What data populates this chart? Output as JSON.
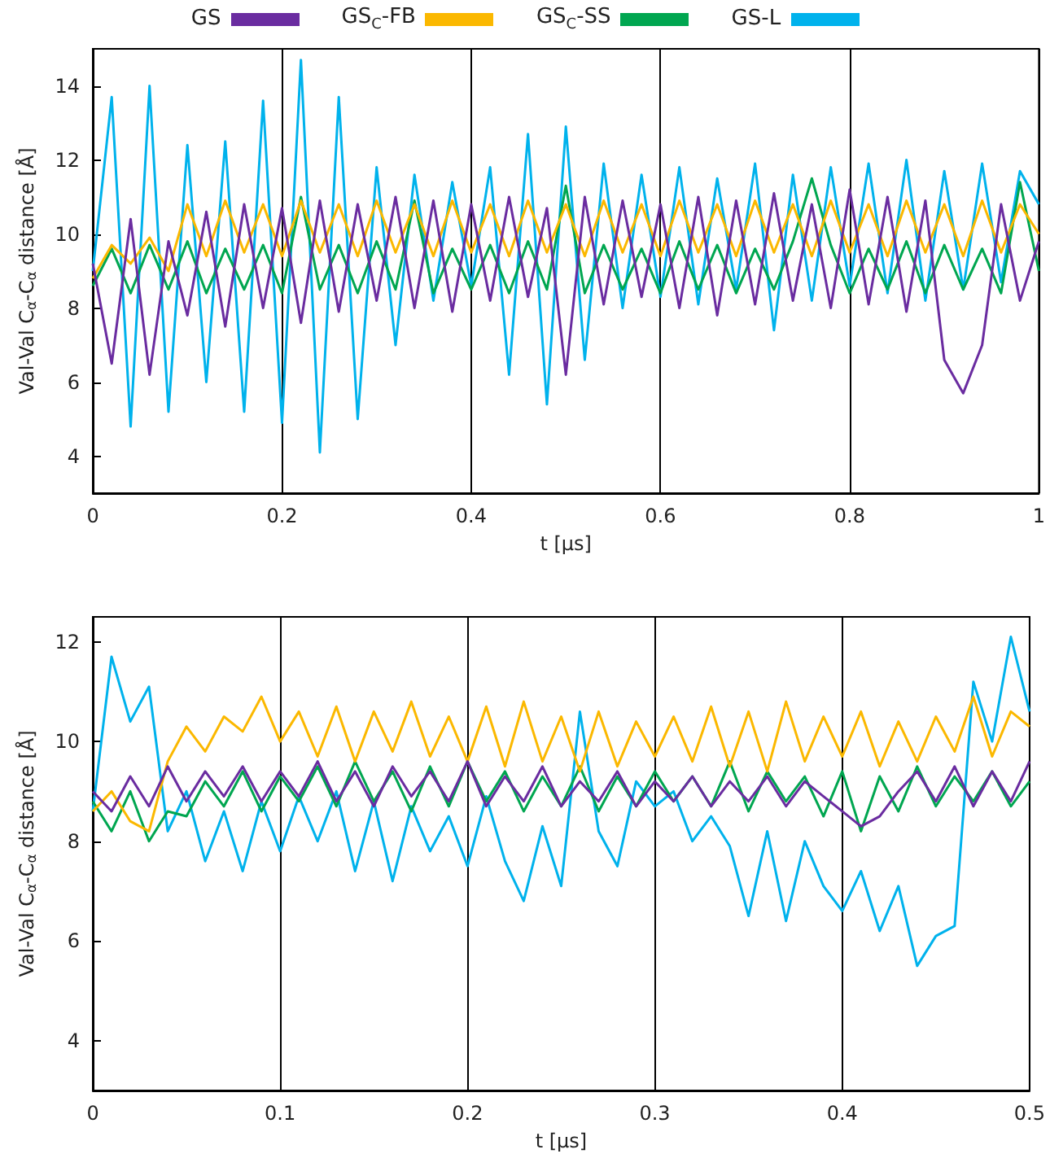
{
  "chart_data": [
    {
      "type": "line",
      "xlabel": "t [μs]",
      "ylabel": "Val-Val C$_{α}$-C$_{α}$ distance [Å]",
      "legend": "top",
      "grid": "x",
      "marker": "none",
      "line_style": "solid",
      "xlim": [
        0,
        1
      ],
      "xticks": [
        0,
        0.2,
        0.4,
        0.6,
        0.8,
        1
      ],
      "ylim": [
        3,
        15
      ],
      "yticks": [
        4,
        6,
        8,
        10,
        12,
        14
      ],
      "x": [
        0,
        0.02,
        0.04,
        0.06,
        0.08,
        0.1,
        0.12,
        0.14,
        0.16,
        0.18,
        0.2,
        0.22,
        0.24,
        0.26,
        0.28,
        0.3,
        0.32,
        0.34,
        0.36,
        0.38,
        0.4,
        0.42,
        0.44,
        0.46,
        0.48,
        0.5,
        0.52,
        0.54,
        0.56,
        0.58,
        0.6,
        0.62,
        0.64,
        0.66,
        0.68,
        0.7,
        0.72,
        0.74,
        0.76,
        0.78,
        0.8,
        0.82,
        0.84,
        0.86,
        0.88,
        0.9,
        0.92,
        0.94,
        0.96,
        0.98,
        1
      ],
      "series": [
        {
          "name": "GS",
          "color": "#6a2ca0",
          "values": [
            9.2,
            6.5,
            10.4,
            6.2,
            9.8,
            7.8,
            10.6,
            7.5,
            10.8,
            8.0,
            10.7,
            7.6,
            10.9,
            7.9,
            10.8,
            8.2,
            11.0,
            8.0,
            10.9,
            7.9,
            10.8,
            8.2,
            11.0,
            8.3,
            10.7,
            6.2,
            11.0,
            8.1,
            10.9,
            8.3,
            10.8,
            8.0,
            11.0,
            7.8,
            10.9,
            8.1,
            11.1,
            8.2,
            10.8,
            8.0,
            11.2,
            8.1,
            11.0,
            7.9,
            10.9,
            6.6,
            5.7,
            7.0,
            10.8,
            8.2,
            9.8
          ]
        },
        {
          "name": "GS$_{C}$-FB",
          "color": "#fbb800",
          "values": [
            8.8,
            9.7,
            9.2,
            9.9,
            9.0,
            10.8,
            9.4,
            10.9,
            9.5,
            10.8,
            9.4,
            10.9,
            9.5,
            10.8,
            9.4,
            10.9,
            9.5,
            10.8,
            9.4,
            10.9,
            9.5,
            10.8,
            9.4,
            10.9,
            9.5,
            10.8,
            9.4,
            10.9,
            9.5,
            10.8,
            9.4,
            10.9,
            9.5,
            10.8,
            9.4,
            10.9,
            9.5,
            10.8,
            9.4,
            10.9,
            9.5,
            10.8,
            9.4,
            10.9,
            9.5,
            10.8,
            9.4,
            10.9,
            9.5,
            10.8,
            10.0
          ]
        },
        {
          "name": "GS$_{C}$-SS",
          "color": "#00a650",
          "values": [
            8.6,
            9.6,
            8.4,
            9.7,
            8.5,
            9.8,
            8.4,
            9.6,
            8.5,
            9.7,
            8.4,
            11.0,
            8.5,
            9.7,
            8.4,
            9.8,
            8.5,
            10.9,
            8.4,
            9.6,
            8.5,
            9.7,
            8.4,
            9.8,
            8.5,
            11.3,
            8.4,
            9.7,
            8.5,
            9.6,
            8.4,
            9.8,
            8.5,
            9.7,
            8.4,
            9.6,
            8.5,
            9.8,
            11.5,
            9.7,
            8.4,
            9.6,
            8.5,
            9.8,
            8.4,
            9.7,
            8.5,
            9.6,
            8.4,
            11.4,
            9.0
          ]
        },
        {
          "name": "GS-L",
          "color": "#00b2ec",
          "values": [
            9.0,
            13.7,
            4.8,
            14.0,
            5.2,
            12.4,
            6.0,
            12.5,
            5.2,
            13.6,
            4.9,
            14.7,
            4.1,
            13.7,
            5.0,
            11.8,
            7.0,
            11.6,
            8.2,
            11.4,
            8.6,
            11.8,
            6.2,
            12.7,
            5.4,
            12.9,
            6.6,
            11.9,
            8.0,
            11.6,
            8.3,
            11.8,
            8.1,
            11.5,
            8.5,
            11.9,
            7.4,
            11.6,
            8.2,
            11.8,
            8.6,
            11.9,
            8.4,
            12.0,
            8.2,
            11.7,
            8.5,
            11.9,
            8.7,
            11.7,
            10.8
          ]
        }
      ]
    },
    {
      "type": "line",
      "xlabel": "t [μs]",
      "ylabel": "Val-Val C$_{α}$-C$_{α}$ distance [Å]",
      "grid": "x",
      "marker": "none",
      "line_style": "solid",
      "xlim": [
        0,
        0.5
      ],
      "xticks": [
        0,
        0.1,
        0.2,
        0.3,
        0.4,
        0.5
      ],
      "ylim": [
        3,
        12.5
      ],
      "yticks": [
        4,
        6,
        8,
        10,
        12
      ],
      "x": [
        0,
        0.01,
        0.02,
        0.03,
        0.04,
        0.05,
        0.06,
        0.07,
        0.08,
        0.09,
        0.1,
        0.11,
        0.12,
        0.13,
        0.14,
        0.15,
        0.16,
        0.17,
        0.18,
        0.19,
        0.2,
        0.21,
        0.22,
        0.23,
        0.24,
        0.25,
        0.26,
        0.27,
        0.28,
        0.29,
        0.3,
        0.31,
        0.32,
        0.33,
        0.34,
        0.35,
        0.36,
        0.37,
        0.38,
        0.39,
        0.4,
        0.41,
        0.42,
        0.43,
        0.44,
        0.45,
        0.46,
        0.47,
        0.48,
        0.49,
        0.5
      ],
      "series": [
        {
          "color": "#6a2ca0",
          "values": [
            9.0,
            8.6,
            9.3,
            8.7,
            9.5,
            8.8,
            9.4,
            8.9,
            9.5,
            8.8,
            9.4,
            8.9,
            9.6,
            8.8,
            9.4,
            8.7,
            9.5,
            8.9,
            9.4,
            8.8,
            9.6,
            8.7,
            9.3,
            8.8,
            9.5,
            8.7,
            9.2,
            8.8,
            9.4,
            8.7,
            9.2,
            8.8,
            9.3,
            8.7,
            9.2,
            8.8,
            9.3,
            8.7,
            9.2,
            8.9,
            8.6,
            8.3,
            8.5,
            9.0,
            9.4,
            8.8,
            9.5,
            8.7,
            9.4,
            8.8,
            9.6
          ]
        },
        {
          "color": "#fbb800",
          "values": [
            8.6,
            9.0,
            8.4,
            8.2,
            9.6,
            10.3,
            9.8,
            10.5,
            10.2,
            10.9,
            10.0,
            10.6,
            9.7,
            10.7,
            9.6,
            10.6,
            9.8,
            10.8,
            9.7,
            10.5,
            9.6,
            10.7,
            9.5,
            10.8,
            9.6,
            10.5,
            9.4,
            10.6,
            9.5,
            10.4,
            9.7,
            10.5,
            9.6,
            10.7,
            9.5,
            10.6,
            9.4,
            10.8,
            9.6,
            10.5,
            9.7,
            10.6,
            9.5,
            10.4,
            9.6,
            10.5,
            9.8,
            10.9,
            9.7,
            10.6,
            10.3
          ]
        },
        {
          "color": "#00a650",
          "values": [
            8.8,
            8.2,
            9.0,
            8.0,
            8.6,
            8.5,
            9.2,
            8.7,
            9.4,
            8.6,
            9.3,
            8.8,
            9.5,
            8.7,
            9.6,
            8.8,
            9.4,
            8.6,
            9.5,
            8.7,
            9.6,
            8.8,
            9.4,
            8.6,
            9.3,
            8.7,
            9.5,
            8.6,
            9.3,
            8.7,
            9.4,
            8.8,
            9.3,
            8.7,
            9.6,
            8.6,
            9.4,
            8.8,
            9.3,
            8.5,
            9.4,
            8.2,
            9.3,
            8.6,
            9.5,
            8.7,
            9.3,
            8.8,
            9.4,
            8.7,
            9.2
          ]
        },
        {
          "color": "#00b2ec",
          "values": [
            8.6,
            11.7,
            10.4,
            11.1,
            8.2,
            9.0,
            7.6,
            8.6,
            7.4,
            8.8,
            7.8,
            8.9,
            8.0,
            9.0,
            7.4,
            8.8,
            7.2,
            8.7,
            7.8,
            8.5,
            7.5,
            8.9,
            7.6,
            6.8,
            8.3,
            7.1,
            10.6,
            8.2,
            7.5,
            9.2,
            8.7,
            9.0,
            8.0,
            8.5,
            7.9,
            6.5,
            8.2,
            6.4,
            8.0,
            7.1,
            6.6,
            7.4,
            6.2,
            7.1,
            5.5,
            6.1,
            6.3,
            11.2,
            10.0,
            12.1,
            10.6
          ]
        }
      ]
    }
  ]
}
